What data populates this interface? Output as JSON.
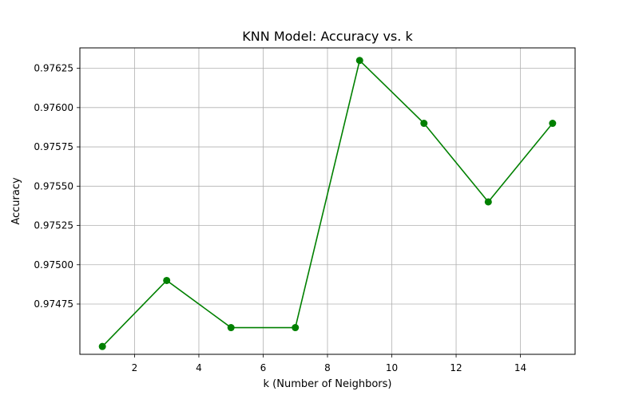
{
  "chart_data": {
    "type": "line",
    "title": "KNN Model: Accuracy vs. k",
    "xlabel": "k (Number of Neighbors)",
    "ylabel": "Accuracy",
    "x": [
      1,
      3,
      5,
      7,
      9,
      11,
      13,
      15
    ],
    "series": [
      {
        "values": [
          0.97448,
          0.9749,
          0.9746,
          0.9746,
          0.9763,
          0.9759,
          0.9754,
          0.9759
        ],
        "color": "#008000",
        "marker": "circle"
      }
    ],
    "xlim": [
      0.3,
      15.7
    ],
    "ylim": [
      0.97443,
      0.97638
    ],
    "xticks": [
      2,
      4,
      6,
      8,
      10,
      12,
      14
    ],
    "xtick_labels": [
      "2",
      "4",
      "6",
      "8",
      "10",
      "12",
      "14"
    ],
    "yticks": [
      0.97475,
      0.975,
      0.97525,
      0.9755,
      0.97575,
      0.976,
      0.97625
    ],
    "ytick_labels": [
      "0.97475",
      "0.97500",
      "0.97525",
      "0.97550",
      "0.97575",
      "0.97600",
      "0.97625"
    ],
    "grid": true
  }
}
